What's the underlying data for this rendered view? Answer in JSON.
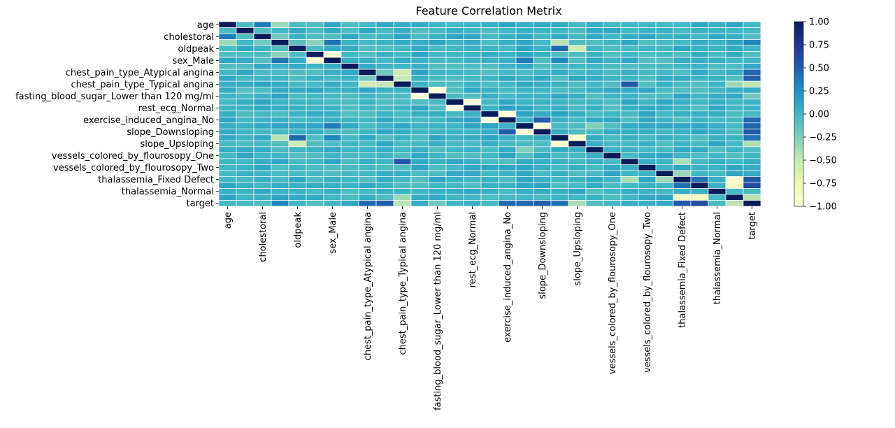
{
  "chart_data": {
    "type": "heatmap",
    "title": "Feature Correlation Metrix",
    "xlabel": "",
    "ylabel": "",
    "grid": true,
    "legend": "right",
    "colormap": "YlGnBu",
    "colormap_stops": [
      "#ffffd9",
      "#edf8b1",
      "#c7e9b4",
      "#7fcdbb",
      "#41b6c4",
      "#1d91c0",
      "#225ea8",
      "#253494",
      "#081d58"
    ],
    "cell_border_color": "#ffffff",
    "vmin": -1.0,
    "vmax": 1.0,
    "colorbar_ticks": [
      "1.00",
      "0.75",
      "0.50",
      "0.25",
      "0.00",
      "−0.25",
      "−0.50",
      "−0.75",
      "−1.00"
    ],
    "labels": [
      "age",
      "",
      "cholestoral",
      "",
      "oldpeak",
      "",
      "sex_Male",
      "",
      "chest_pain_type_Atypical angina",
      "",
      "chest_pain_type_Typical angina",
      "",
      "fasting_blood_sugar_Lower than 120 mg/ml",
      "",
      "rest_ecg_Normal",
      "",
      "exercise_induced_angina_No",
      "",
      "slope_Downsloping",
      "",
      "slope_Upsloping",
      "",
      "vessels_colored_by_flourosopy_One",
      "",
      "vessels_colored_by_flourosopy_Two",
      "",
      "thalassemia_Fixed Defect",
      "",
      "thalassemia_Normal",
      "",
      "target"
    ],
    "strong_pairs": [
      {
        "i": 5,
        "j": 6,
        "value": -1.0
      },
      {
        "i": 11,
        "j": 12,
        "value": -1.0
      },
      {
        "i": 13,
        "j": 14,
        "value": -1.0
      },
      {
        "i": 15,
        "j": 16,
        "value": -1.0
      },
      {
        "i": 17,
        "j": 18,
        "value": -1.0
      },
      {
        "i": 19,
        "j": 20,
        "value": -0.9
      },
      {
        "i": 26,
        "j": 29,
        "value": -0.9
      },
      {
        "i": 27,
        "j": 29,
        "value": -0.85
      },
      {
        "i": 8,
        "j": 10,
        "value": -0.55
      },
      {
        "i": 9,
        "j": 10,
        "value": -0.5
      },
      {
        "i": 23,
        "j": 26,
        "value": -0.4
      },
      {
        "i": 25,
        "j": 26,
        "value": -0.35
      },
      {
        "i": 0,
        "j": 3,
        "value": -0.35
      },
      {
        "i": 3,
        "j": 5,
        "value": -0.3
      },
      {
        "i": 3,
        "j": 19,
        "value": -0.45
      },
      {
        "i": 3,
        "j": 6,
        "value": 0.4
      },
      {
        "i": 4,
        "j": 19,
        "value": 0.45
      },
      {
        "i": 4,
        "j": 20,
        "value": -0.55
      },
      {
        "i": 2,
        "j": 3,
        "value": -0.2
      },
      {
        "i": 10,
        "j": 23,
        "value": 0.55
      },
      {
        "i": 10,
        "j": 29,
        "value": -0.35
      },
      {
        "i": 8,
        "j": 30,
        "value": 0.45
      },
      {
        "i": 9,
        "j": 30,
        "value": 0.5
      },
      {
        "i": 16,
        "j": 30,
        "value": 0.45
      },
      {
        "i": 16,
        "j": 18,
        "value": 0.5
      },
      {
        "i": 17,
        "j": 30,
        "value": 0.45
      },
      {
        "i": 18,
        "j": 30,
        "value": 0.5
      },
      {
        "i": 19,
        "j": 30,
        "value": 0.4
      },
      {
        "i": 20,
        "j": 30,
        "value": -0.4
      },
      {
        "i": 26,
        "j": 30,
        "value": 0.55
      },
      {
        "i": 27,
        "j": 30,
        "value": 0.6
      },
      {
        "i": 29,
        "j": 30,
        "value": -0.45
      },
      {
        "i": 6,
        "j": 19,
        "value": 0.3
      },
      {
        "i": 6,
        "j": 17,
        "value": 0.35
      },
      {
        "i": 26,
        "j": 27,
        "value": 0.4
      },
      {
        "i": 3,
        "j": 30,
        "value": 0.3
      },
      {
        "i": 3,
        "j": 4,
        "value": -0.1
      },
      {
        "i": 0,
        "j": 2,
        "value": 0.35
      },
      {
        "i": 10,
        "j": 30,
        "value": -0.45
      },
      {
        "i": 12,
        "j": 30,
        "value": -0.2
      },
      {
        "i": 17,
        "j": 21,
        "value": -0.25
      },
      {
        "i": 8,
        "j": 9,
        "value": -0.2
      },
      {
        "i": 24,
        "j": 29,
        "value": 0.1
      },
      {
        "i": 14,
        "j": 16,
        "value": 0.15
      }
    ]
  }
}
